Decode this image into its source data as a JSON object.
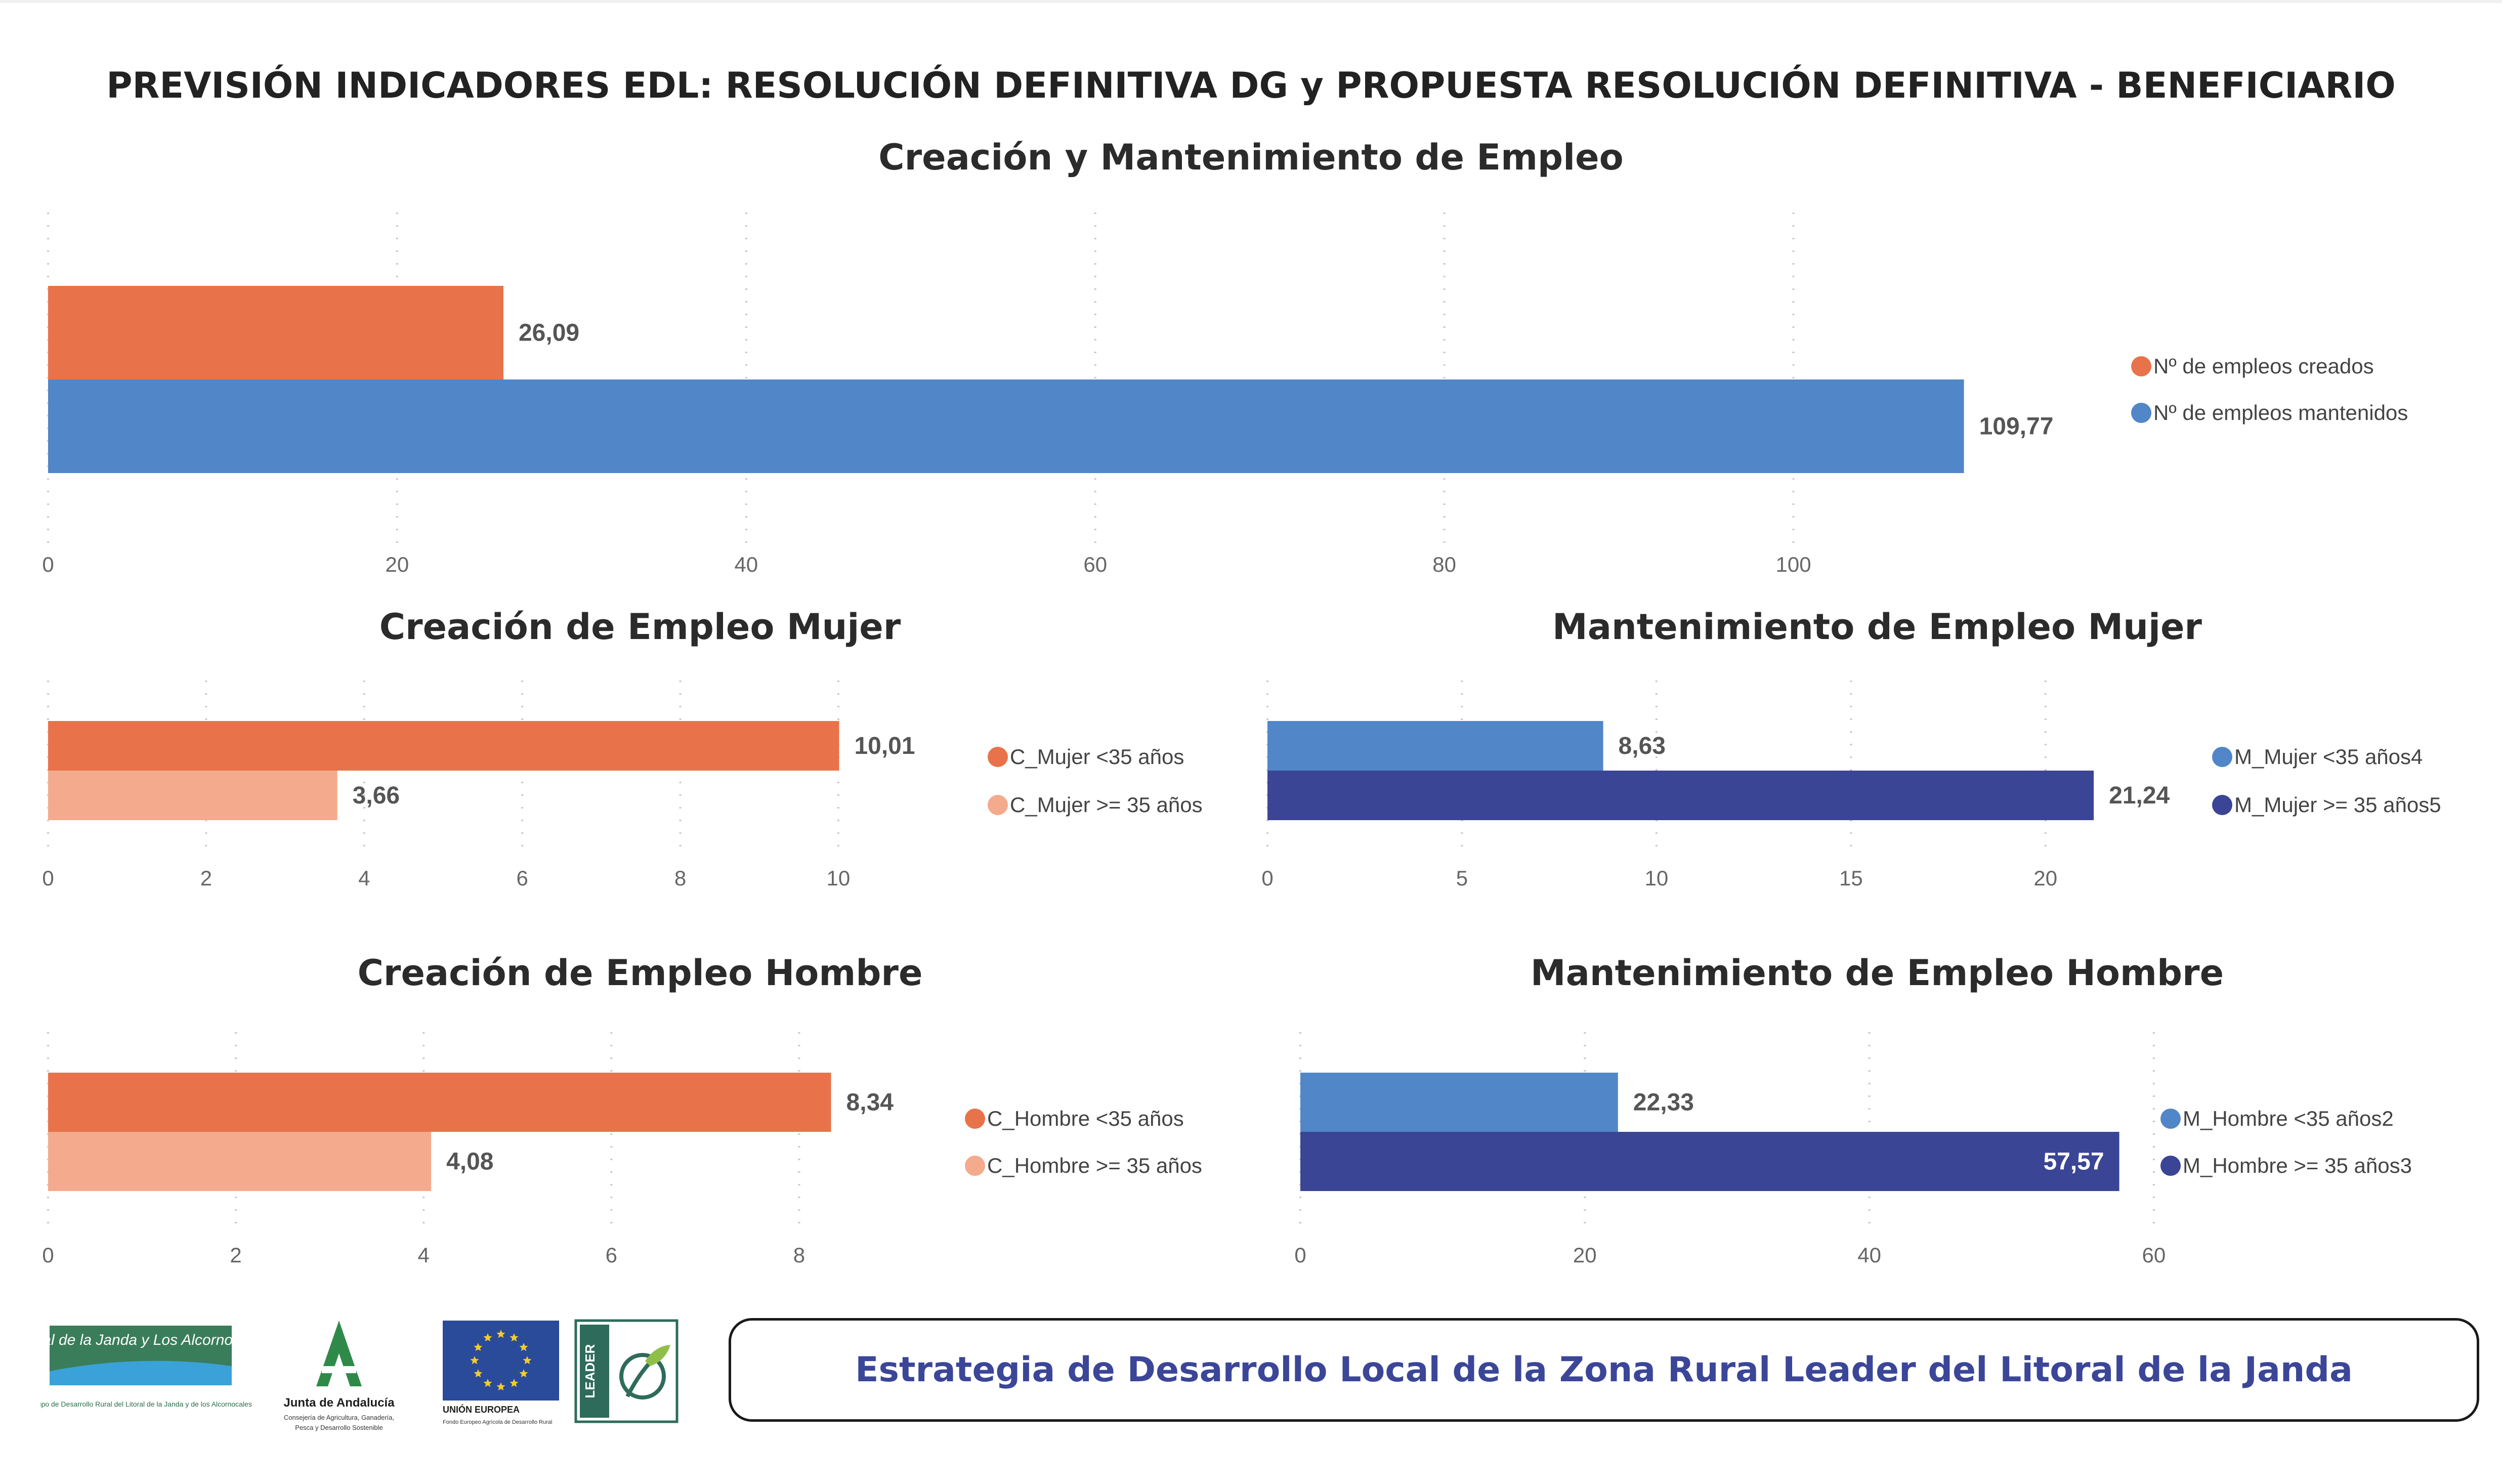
{
  "main_title": "PREVISIÓN INDICADORES EDL: RESOLUCIÓN DEFINITIVA DG y PROPUESTA RESOLUCIÓN DEFINITIVA - BENEFICIARIO",
  "footer": {
    "banner_text": "Estrategia de Desarrollo Local de la Zona Rural Leader del Litoral de la Janda",
    "logos": {
      "gdr": "Litoral de la Janda y Los Alcornocales",
      "gdr_sub": "Grupo de Desarrollo Rural del Litoral de la Janda y de los Alcornocales",
      "junta": "Junta de Andalucía",
      "junta_sub1": "Consejería de Agricultura, Ganadería,",
      "junta_sub2": "Pesca y Desarrollo Sostenible",
      "ue": "UNIÓN EUROPEA",
      "ue_sub": "Fondo Europeo Agrícola de Desarrollo Rural",
      "leader": "LEADER"
    }
  },
  "chart_data": [
    {
      "type": "bar",
      "orientation": "horizontal",
      "title": "Creación y Mantenimiento de Empleo",
      "xlim": [
        0,
        115
      ],
      "ticks": [
        0,
        20,
        40,
        60,
        80,
        100
      ],
      "grid": true,
      "legend": "right",
      "series": [
        {
          "name": "Nº de empleos creados",
          "value": 26.09,
          "label": "26,09",
          "color": "#e8734a"
        },
        {
          "name": "Nº de empleos mantenidos",
          "value": 109.77,
          "label": "109,77",
          "color": "#5186c8"
        }
      ]
    },
    {
      "type": "bar",
      "orientation": "horizontal",
      "title": "Creación de Empleo Mujer",
      "xlim": [
        0,
        10.5
      ],
      "ticks": [
        0,
        2,
        4,
        6,
        8,
        10
      ],
      "grid": true,
      "legend": "right",
      "series": [
        {
          "name": "C_Mujer <35 años",
          "value": 10.01,
          "label": "10,01",
          "color": "#e8734a"
        },
        {
          "name": "C_Mujer >= 35 años",
          "value": 3.66,
          "label": "3,66",
          "color": "#f4aa8d"
        }
      ]
    },
    {
      "type": "bar",
      "orientation": "horizontal",
      "title": "Mantenimiento de Empleo Mujer",
      "xlim": [
        0,
        22.5
      ],
      "ticks": [
        0,
        5,
        10,
        15,
        20
      ],
      "grid": true,
      "legend": "right",
      "series": [
        {
          "name": "M_Mujer <35 años4",
          "value": 8.63,
          "label": "8,63",
          "color": "#5186c8"
        },
        {
          "name": "M_Mujer >= 35 años5",
          "value": 21.24,
          "label": "21,24",
          "color": "#3a4596"
        }
      ]
    },
    {
      "type": "bar",
      "orientation": "horizontal",
      "title": "Creación de Empleo Hombre",
      "xlim": [
        0,
        9
      ],
      "ticks": [
        0,
        2,
        4,
        6,
        8
      ],
      "grid": true,
      "legend": "right",
      "series": [
        {
          "name": "C_Hombre <35 años",
          "value": 8.34,
          "label": "8,34",
          "color": "#e8734a"
        },
        {
          "name": "C_Hombre >= 35 años",
          "value": 4.08,
          "label": "4,08",
          "color": "#f4aa8d"
        }
      ]
    },
    {
      "type": "bar",
      "orientation": "horizontal",
      "title": "Mantenimiento de Empleo Hombre",
      "xlim": [
        0,
        61
      ],
      "ticks": [
        0,
        20,
        40,
        60
      ],
      "grid": true,
      "legend": "right",
      "series": [
        {
          "name": "M_Hombre <35 años2",
          "value": 22.33,
          "label": "22,33",
          "color": "#5186c8"
        },
        {
          "name": "M_Hombre >= 35 años3",
          "value": 57.57,
          "label": "57,57",
          "color": "#3a4596",
          "label_inside": true
        }
      ]
    }
  ]
}
